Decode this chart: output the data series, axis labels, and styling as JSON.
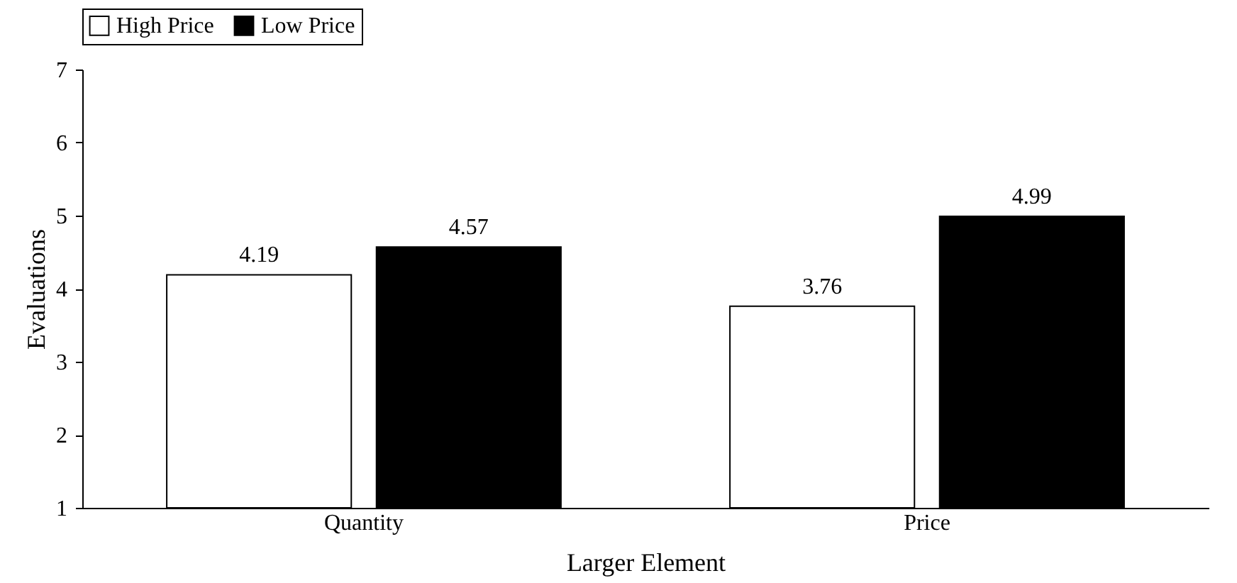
{
  "chart_data": {
    "type": "bar",
    "xlabel": "Larger Element",
    "ylabel": "Evaluations",
    "categories": [
      "Quantity",
      "Price"
    ],
    "series": [
      {
        "name": "High Price",
        "color": "#ffffff",
        "values": [
          4.19,
          3.76
        ]
      },
      {
        "name": "Low Price",
        "color": "#000000",
        "values": [
          4.57,
          4.99
        ]
      }
    ],
    "ylim": [
      1,
      7
    ],
    "yticks": [
      1,
      2,
      3,
      4,
      5,
      6,
      7
    ],
    "grid": false,
    "legend": "top",
    "data_labels": true
  }
}
